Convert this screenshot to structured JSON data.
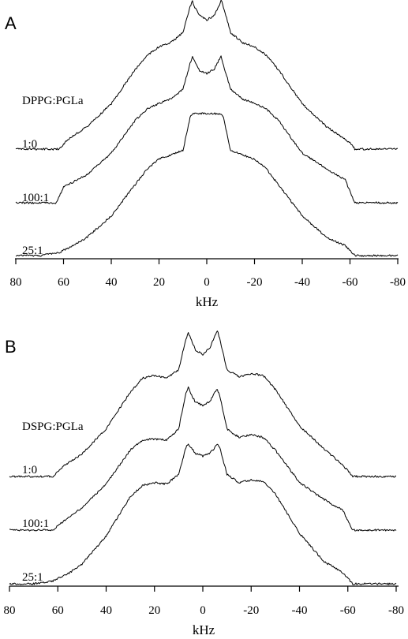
{
  "chart_data": [
    {
      "type": "line",
      "panel_label": "A",
      "annotation": "DPPG:PGLa",
      "xlabel": "kHz",
      "xlim": [
        80,
        -80
      ],
      "xticks": [
        80,
        60,
        40,
        20,
        0,
        -20,
        -40,
        -60,
        -80
      ],
      "xtick_labels": [
        "80",
        "60",
        "40",
        "20",
        "0",
        "-20",
        "-40",
        "-60",
        "-80"
      ],
      "series": [
        {
          "name": "1:0",
          "x": [
            80,
            70,
            62,
            58,
            50,
            40,
            30,
            25,
            20,
            15,
            10,
            7,
            6,
            5,
            3,
            0,
            -3,
            -5,
            -6,
            -7,
            -10,
            -15,
            -20,
            -25,
            -30,
            -40,
            -50,
            -58,
            -61,
            -62,
            -70,
            -80
          ],
          "y": [
            0.0,
            0.0,
            0.0,
            0.07,
            0.16,
            0.32,
            0.56,
            0.66,
            0.72,
            0.75,
            0.82,
            1.0,
            1.04,
            1.0,
            0.94,
            0.91,
            0.94,
            1.0,
            1.05,
            1.0,
            0.82,
            0.75,
            0.72,
            0.66,
            0.56,
            0.32,
            0.16,
            0.07,
            0.03,
            0.0,
            0.0,
            0.0
          ]
        },
        {
          "name": "100:1",
          "x": [
            80,
            70,
            63,
            60,
            50,
            40,
            30,
            25,
            20,
            15,
            10,
            7,
            6,
            5,
            3,
            0,
            -3,
            -5,
            -6,
            -7,
            -10,
            -15,
            -20,
            -25,
            -30,
            -40,
            -50,
            -58,
            -61,
            -62,
            -70,
            -80
          ],
          "y": [
            0.0,
            0.0,
            0.0,
            0.11,
            0.2,
            0.35,
            0.58,
            0.66,
            0.7,
            0.73,
            0.8,
            0.98,
            1.03,
            0.99,
            0.93,
            0.91,
            0.94,
            1.0,
            1.03,
            0.97,
            0.8,
            0.73,
            0.7,
            0.66,
            0.58,
            0.35,
            0.24,
            0.16,
            0.04,
            0.0,
            0.0,
            0.0
          ]
        },
        {
          "name": "25:1",
          "x": [
            80,
            70,
            62,
            55,
            50,
            40,
            30,
            25,
            20,
            15,
            10,
            7,
            6,
            5,
            3,
            0,
            -3,
            -5,
            -6,
            -7,
            -10,
            -15,
            -20,
            -25,
            -30,
            -40,
            -50,
            -58,
            -61,
            -62,
            -70,
            -80
          ],
          "y": [
            0.0,
            0.0,
            0.02,
            0.08,
            0.13,
            0.28,
            0.5,
            0.61,
            0.68,
            0.71,
            0.74,
            0.97,
            1.0,
            1.0,
            1.0,
            1.0,
            1.0,
            1.0,
            1.0,
            0.97,
            0.74,
            0.71,
            0.68,
            0.61,
            0.5,
            0.28,
            0.13,
            0.07,
            0.02,
            0.0,
            0.0,
            0.0
          ]
        }
      ]
    },
    {
      "type": "line",
      "panel_label": "B",
      "annotation": "DSPG:PGLa",
      "xlabel": "kHz",
      "xlim": [
        80,
        -80
      ],
      "xticks": [
        80,
        60,
        40,
        20,
        0,
        -20,
        -40,
        -60,
        -80
      ],
      "xtick_labels": [
        "80",
        "60",
        "40",
        "20",
        "0",
        "-20",
        "-40",
        "-60",
        "-80"
      ],
      "series": [
        {
          "name": "1:0",
          "x": [
            80,
            70,
            62,
            58,
            50,
            40,
            30,
            25,
            20,
            15,
            10,
            7,
            6,
            5,
            3,
            0,
            -3,
            -5,
            -6,
            -7,
            -10,
            -15,
            -20,
            -25,
            -30,
            -40,
            -50,
            -58,
            -61,
            -62,
            -70,
            -80
          ],
          "y": [
            0.0,
            0.0,
            0.0,
            0.07,
            0.16,
            0.34,
            0.6,
            0.7,
            0.72,
            0.7,
            0.76,
            0.98,
            1.02,
            0.98,
            0.9,
            0.87,
            0.92,
            1.0,
            1.04,
            0.98,
            0.76,
            0.71,
            0.73,
            0.72,
            0.62,
            0.36,
            0.2,
            0.08,
            0.02,
            0.0,
            0.0,
            0.0
          ]
        },
        {
          "name": "100:1",
          "x": [
            80,
            70,
            62,
            58,
            50,
            40,
            30,
            25,
            20,
            15,
            10,
            7,
            6,
            5,
            3,
            0,
            -3,
            -5,
            -6,
            -7,
            -10,
            -15,
            -20,
            -25,
            -30,
            -40,
            -50,
            -58,
            -61,
            -62,
            -70,
            -80
          ],
          "y": [
            0.0,
            0.0,
            0.0,
            0.06,
            0.16,
            0.33,
            0.57,
            0.64,
            0.65,
            0.64,
            0.72,
            0.98,
            1.02,
            0.97,
            0.91,
            0.89,
            0.92,
            0.98,
            1.0,
            0.96,
            0.72,
            0.66,
            0.68,
            0.66,
            0.57,
            0.34,
            0.22,
            0.14,
            0.03,
            0.0,
            0.0,
            0.0
          ]
        },
        {
          "name": "25:1",
          "x": [
            80,
            70,
            62,
            55,
            50,
            40,
            30,
            25,
            20,
            15,
            10,
            7,
            6,
            5,
            3,
            0,
            -3,
            -5,
            -6,
            -7,
            -10,
            -15,
            -20,
            -25,
            -30,
            -40,
            -50,
            -58,
            -61,
            -62,
            -70,
            -80
          ],
          "y": [
            0.0,
            0.0,
            0.02,
            0.08,
            0.14,
            0.34,
            0.62,
            0.7,
            0.72,
            0.71,
            0.78,
            0.97,
            1.0,
            0.97,
            0.93,
            0.91,
            0.93,
            0.97,
            1.0,
            0.97,
            0.78,
            0.72,
            0.74,
            0.73,
            0.64,
            0.36,
            0.16,
            0.08,
            0.02,
            0.0,
            0.0,
            0.0
          ]
        }
      ]
    }
  ]
}
